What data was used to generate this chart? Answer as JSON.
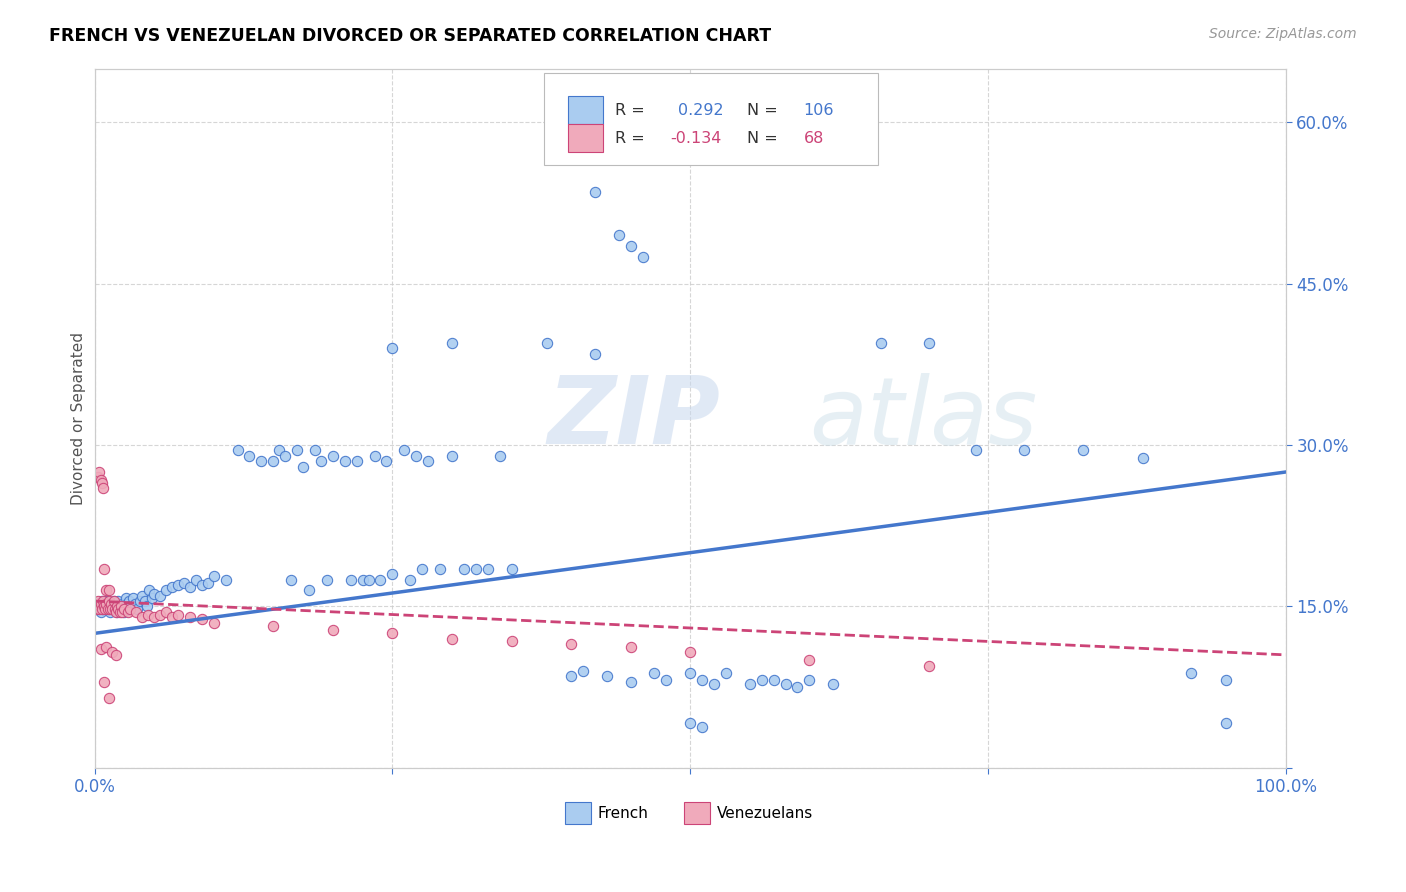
{
  "title": "FRENCH VS VENEZUELAN DIVORCED OR SEPARATED CORRELATION CHART",
  "source": "Source: ZipAtlas.com",
  "ylabel": "Divorced or Separated",
  "xlim": [
    0,
    1.0
  ],
  "ylim": [
    0,
    0.65
  ],
  "french_R": 0.292,
  "french_N": 106,
  "venezuelan_R": -0.134,
  "venezuelan_N": 68,
  "french_color": "#aaccf0",
  "venezuelan_color": "#f0aabb",
  "french_line_color": "#4477cc",
  "venezuelan_line_color": "#cc4477",
  "watermark_zip": "ZIP",
  "watermark_atlas": "atlas",
  "legend_french_label": "French",
  "legend_venezuelan_label": "Venezuelans",
  "french_line_x0": 0.0,
  "french_line_y0": 0.125,
  "french_line_x1": 1.0,
  "french_line_y1": 0.275,
  "ven_line_x0": 0.0,
  "ven_line_y0": 0.155,
  "ven_line_x1": 1.0,
  "ven_line_y1": 0.105
}
